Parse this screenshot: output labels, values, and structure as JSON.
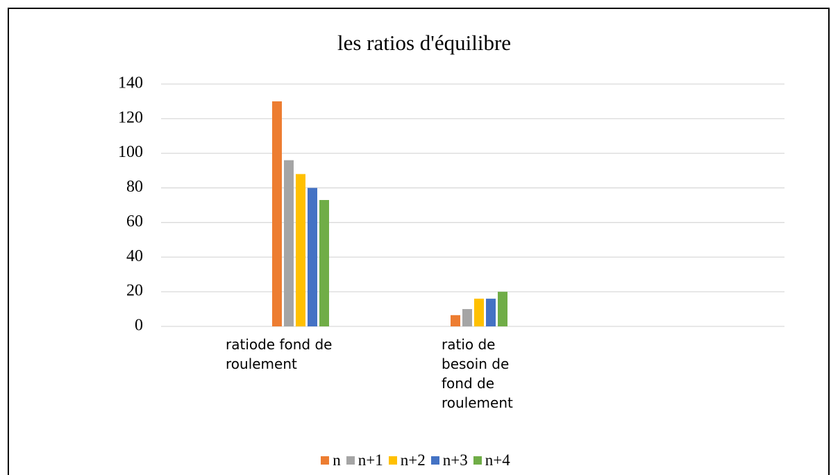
{
  "chart_data": {
    "type": "bar",
    "title": "les ratios d'équilibre",
    "categories": [
      "ratiode fond de roulement",
      "ratio de besoin de fond de roulement",
      null
    ],
    "series": [
      {
        "name": "n",
        "color": "#ed7d31",
        "values": [
          130,
          6.5,
          null
        ]
      },
      {
        "name": "n+1",
        "color": "#a5a5a5",
        "values": [
          96,
          10,
          null
        ]
      },
      {
        "name": "n+2",
        "color": "#ffc000",
        "values": [
          88,
          16,
          null
        ]
      },
      {
        "name": "n+3",
        "color": "#4472c4",
        "values": [
          80,
          16,
          null
        ]
      },
      {
        "name": "n+4",
        "color": "#70ad47",
        "values": [
          73,
          20,
          null
        ]
      }
    ],
    "ylim": [
      0,
      140
    ],
    "yticks": [
      0,
      20,
      40,
      60,
      80,
      100,
      120,
      140
    ],
    "grid": true,
    "legend": "bottom"
  }
}
